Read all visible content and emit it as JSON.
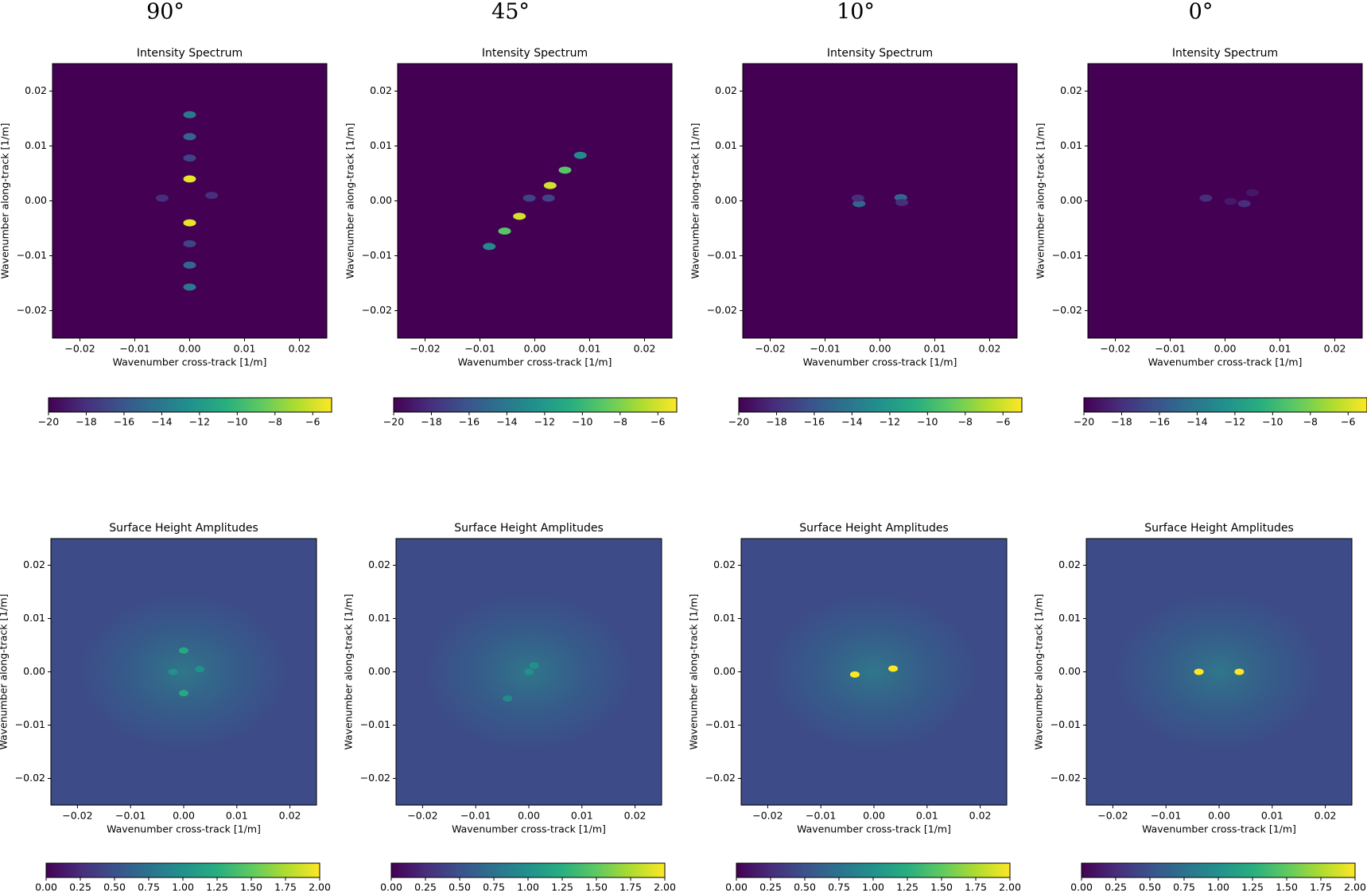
{
  "figure": {
    "column_titles": [
      "90°",
      "45°",
      "10°",
      "0°"
    ]
  },
  "chart_data": [
    {
      "type": "heatmap",
      "title": "Intensity Spectrum",
      "xlabel": "Wavenumber cross-track [1/m]",
      "ylabel": "Wavenumber along-track [1/m]",
      "colormap": "viridis",
      "xlim": [
        -0.025,
        0.025
      ],
      "ylim": [
        -0.025,
        0.025
      ],
      "xticks": [
        {
          "value": -0.02,
          "label": "−0.02"
        },
        {
          "value": -0.01,
          "label": "−0.01"
        },
        {
          "value": 0,
          "label": "0.00"
        },
        {
          "value": 0.01,
          "label": "0.01"
        },
        {
          "value": 0.02,
          "label": "0.02"
        }
      ],
      "yticks": [
        {
          "value": -0.02,
          "label": "−0.02"
        },
        {
          "value": -0.01,
          "label": "−0.01"
        },
        {
          "value": 0,
          "label": "0.00"
        },
        {
          "value": 0.01,
          "label": "0.01"
        },
        {
          "value": 0.02,
          "label": "0.02"
        }
      ],
      "background": -20,
      "spots": {
        "x": [
          0,
          0,
          0,
          0,
          0,
          0,
          0,
          0,
          -0.005,
          0.004
        ],
        "y": [
          0.004,
          -0.004,
          0.0117,
          -0.0117,
          0.0157,
          -0.0157,
          0.0078,
          -0.0078,
          0.0005,
          0.001
        ],
        "values": [
          -5.5,
          -5.5,
          -15,
          -15,
          -14,
          -14,
          -17,
          -17,
          -18,
          -18
        ]
      },
      "colorbar": {
        "lim": [
          -20,
          -5
        ],
        "ticks": [
          {
            "value": -20,
            "label": "−20"
          },
          {
            "value": -18,
            "label": "−18"
          },
          {
            "value": -16,
            "label": "−16"
          },
          {
            "value": -14,
            "label": "−14"
          },
          {
            "value": -12,
            "label": "−12"
          },
          {
            "value": -10,
            "label": "−10"
          },
          {
            "value": -8,
            "label": "−8"
          },
          {
            "value": -6,
            "label": "−6"
          }
        ]
      }
    },
    {
      "type": "heatmap",
      "title": "Intensity Spectrum",
      "xlabel": "Wavenumber cross-track [1/m]",
      "ylabel": "Wavenumber along-track [1/m]",
      "colormap": "viridis",
      "xlim": [
        -0.025,
        0.025
      ],
      "ylim": [
        -0.025,
        0.025
      ],
      "xticks": [
        {
          "value": -0.02,
          "label": "−0.02"
        },
        {
          "value": -0.01,
          "label": "−0.01"
        },
        {
          "value": 0,
          "label": "0.00"
        },
        {
          "value": 0.01,
          "label": "0.01"
        },
        {
          "value": 0.02,
          "label": "0.02"
        }
      ],
      "yticks": [
        {
          "value": -0.02,
          "label": "−0.02"
        },
        {
          "value": -0.01,
          "label": "−0.01"
        },
        {
          "value": 0,
          "label": "0.00"
        },
        {
          "value": 0.01,
          "label": "0.01"
        },
        {
          "value": 0.02,
          "label": "0.02"
        }
      ],
      "background": -20,
      "spots": {
        "x": [
          0.0028,
          -0.0028,
          0.0055,
          -0.0055,
          0.0083,
          -0.0083,
          -0.001,
          0.0025
        ],
        "y": [
          0.0028,
          -0.0028,
          0.0056,
          -0.0055,
          0.0083,
          -0.0083,
          0.0005,
          0.0005
        ],
        "values": [
          -6,
          -6,
          -9,
          -9,
          -13,
          -13,
          -17,
          -17
        ]
      },
      "colorbar": {
        "lim": [
          -20,
          -5
        ],
        "ticks": [
          {
            "value": -20,
            "label": "−20"
          },
          {
            "value": -18,
            "label": "−18"
          },
          {
            "value": -16,
            "label": "−16"
          },
          {
            "value": -14,
            "label": "−14"
          },
          {
            "value": -12,
            "label": "−12"
          },
          {
            "value": -10,
            "label": "−10"
          },
          {
            "value": -8,
            "label": "−8"
          },
          {
            "value": -6,
            "label": "−6"
          }
        ]
      }
    },
    {
      "type": "heatmap",
      "title": "Intensity Spectrum",
      "xlabel": "Wavenumber cross-track [1/m]",
      "ylabel": "Wavenumber along-track [1/m]",
      "colormap": "viridis",
      "xlim": [
        -0.025,
        0.025
      ],
      "ylim": [
        -0.025,
        0.025
      ],
      "xticks": [
        {
          "value": -0.02,
          "label": "−0.02"
        },
        {
          "value": -0.01,
          "label": "−0.01"
        },
        {
          "value": 0,
          "label": "0.00"
        },
        {
          "value": 0.01,
          "label": "0.01"
        },
        {
          "value": 0.02,
          "label": "0.02"
        }
      ],
      "yticks": [
        {
          "value": -0.02,
          "label": "−0.02"
        },
        {
          "value": -0.01,
          "label": "−0.01"
        },
        {
          "value": 0,
          "label": "0.00"
        },
        {
          "value": 0.01,
          "label": "0.01"
        },
        {
          "value": 0.02,
          "label": "0.02"
        }
      ],
      "background": -20,
      "spots": {
        "x": [
          0.0038,
          -0.0038,
          -0.004,
          0.004
        ],
        "y": [
          0.0006,
          -0.0005,
          0.0005,
          -0.0003
        ],
        "values": [
          -15,
          -15,
          -18,
          -18
        ]
      },
      "colorbar": {
        "lim": [
          -20,
          -5
        ],
        "ticks": [
          {
            "value": -20,
            "label": "−20"
          },
          {
            "value": -18,
            "label": "−18"
          },
          {
            "value": -16,
            "label": "−16"
          },
          {
            "value": -14,
            "label": "−14"
          },
          {
            "value": -12,
            "label": "−12"
          },
          {
            "value": -10,
            "label": "−10"
          },
          {
            "value": -8,
            "label": "−8"
          },
          {
            "value": -6,
            "label": "−6"
          }
        ]
      }
    },
    {
      "type": "heatmap",
      "title": "Intensity Spectrum",
      "xlabel": "Wavenumber cross-track [1/m]",
      "ylabel": "Wavenumber along-track [1/m]",
      "colormap": "viridis",
      "xlim": [
        -0.025,
        0.025
      ],
      "ylim": [
        -0.025,
        0.025
      ],
      "xticks": [
        {
          "value": -0.02,
          "label": "−0.02"
        },
        {
          "value": -0.01,
          "label": "−0.01"
        },
        {
          "value": 0,
          "label": "0.00"
        },
        {
          "value": 0.01,
          "label": "0.01"
        },
        {
          "value": 0.02,
          "label": "0.02"
        }
      ],
      "yticks": [
        {
          "value": -0.02,
          "label": "−0.02"
        },
        {
          "value": -0.01,
          "label": "−0.01"
        },
        {
          "value": 0,
          "label": "0.00"
        },
        {
          "value": 0.01,
          "label": "0.01"
        },
        {
          "value": 0.02,
          "label": "0.02"
        }
      ],
      "background": -20,
      "spots": {
        "x": [
          -0.0035,
          0.0035,
          0.001,
          0.005
        ],
        "y": [
          0.0005,
          -0.0005,
          -0.0001,
          0.0015
        ],
        "values": [
          -18,
          -18,
          -19,
          -19
        ]
      },
      "colorbar": {
        "lim": [
          -20,
          -5
        ],
        "ticks": [
          {
            "value": -20,
            "label": "−20"
          },
          {
            "value": -18,
            "label": "−18"
          },
          {
            "value": -16,
            "label": "−16"
          },
          {
            "value": -14,
            "label": "−14"
          },
          {
            "value": -12,
            "label": "−12"
          },
          {
            "value": -10,
            "label": "−10"
          },
          {
            "value": -8,
            "label": "−8"
          },
          {
            "value": -6,
            "label": "−6"
          }
        ]
      }
    },
    {
      "type": "heatmap",
      "title": "Surface Height Amplitudes",
      "xlabel": "Wavenumber cross-track [1/m]",
      "ylabel": "Wavenumber along-track [1/m]",
      "colormap": "viridis",
      "xlim": [
        -0.025,
        0.025
      ],
      "ylim": [
        -0.025,
        0.025
      ],
      "xticks": [
        {
          "value": -0.02,
          "label": "−0.02"
        },
        {
          "value": -0.01,
          "label": "−0.01"
        },
        {
          "value": 0,
          "label": "0.00"
        },
        {
          "value": 0.01,
          "label": "0.01"
        },
        {
          "value": 0.02,
          "label": "0.02"
        }
      ],
      "yticks": [
        {
          "value": -0.02,
          "label": "−0.02"
        },
        {
          "value": -0.01,
          "label": "−0.01"
        },
        {
          "value": 0,
          "label": "0.00"
        },
        {
          "value": 0.01,
          "label": "0.01"
        },
        {
          "value": 0.02,
          "label": "0.02"
        }
      ],
      "background": 0.45,
      "spots": {
        "x": [
          0,
          0,
          -0.002,
          0.003
        ],
        "y": [
          0.004,
          -0.004,
          0,
          0.0005
        ],
        "values": [
          1.2,
          1.2,
          1.0,
          1.0
        ]
      },
      "colorbar": {
        "lim": [
          0,
          2
        ],
        "ticks": [
          {
            "value": 0,
            "label": "0.00"
          },
          {
            "value": 0.25,
            "label": "0.25"
          },
          {
            "value": 0.5,
            "label": "0.50"
          },
          {
            "value": 0.75,
            "label": "0.75"
          },
          {
            "value": 1,
            "label": "1.00"
          },
          {
            "value": 1.25,
            "label": "1.25"
          },
          {
            "value": 1.5,
            "label": "1.50"
          },
          {
            "value": 1.75,
            "label": "1.75"
          },
          {
            "value": 2,
            "label": "2.00"
          }
        ]
      }
    },
    {
      "type": "heatmap",
      "title": "Surface Height Amplitudes",
      "xlabel": "Wavenumber cross-track [1/m]",
      "ylabel": "Wavenumber along-track [1/m]",
      "colormap": "viridis",
      "xlim": [
        -0.025,
        0.025
      ],
      "ylim": [
        -0.025,
        0.025
      ],
      "xticks": [
        {
          "value": -0.02,
          "label": "−0.02"
        },
        {
          "value": -0.01,
          "label": "−0.01"
        },
        {
          "value": 0,
          "label": "0.00"
        },
        {
          "value": 0.01,
          "label": "0.01"
        },
        {
          "value": 0.02,
          "label": "0.02"
        }
      ],
      "yticks": [
        {
          "value": -0.02,
          "label": "−0.02"
        },
        {
          "value": -0.01,
          "label": "−0.01"
        },
        {
          "value": 0,
          "label": "0.00"
        },
        {
          "value": 0.01,
          "label": "0.01"
        },
        {
          "value": 0.02,
          "label": "0.02"
        }
      ],
      "background": 0.45,
      "spots": {
        "x": [
          0,
          0.001,
          -0.004
        ],
        "y": [
          0,
          0.0012,
          -0.005
        ],
        "values": [
          1.0,
          1.0,
          0.95
        ]
      },
      "colorbar": {
        "lim": [
          0,
          2
        ],
        "ticks": [
          {
            "value": 0,
            "label": "0.00"
          },
          {
            "value": 0.25,
            "label": "0.25"
          },
          {
            "value": 0.5,
            "label": "0.50"
          },
          {
            "value": 0.75,
            "label": "0.75"
          },
          {
            "value": 1,
            "label": "1.00"
          },
          {
            "value": 1.25,
            "label": "1.25"
          },
          {
            "value": 1.5,
            "label": "1.50"
          },
          {
            "value": 1.75,
            "label": "1.75"
          },
          {
            "value": 2,
            "label": "2.00"
          }
        ]
      }
    },
    {
      "type": "heatmap",
      "title": "Surface Height Amplitudes",
      "xlabel": "Wavenumber cross-track [1/m]",
      "ylabel": "Wavenumber along-track [1/m]",
      "colormap": "viridis",
      "xlim": [
        -0.025,
        0.025
      ],
      "ylim": [
        -0.025,
        0.025
      ],
      "xticks": [
        {
          "value": -0.02,
          "label": "−0.02"
        },
        {
          "value": -0.01,
          "label": "−0.01"
        },
        {
          "value": 0,
          "label": "0.00"
        },
        {
          "value": 0.01,
          "label": "0.01"
        },
        {
          "value": 0.02,
          "label": "0.02"
        }
      ],
      "yticks": [
        {
          "value": -0.02,
          "label": "−0.02"
        },
        {
          "value": -0.01,
          "label": "−0.01"
        },
        {
          "value": 0,
          "label": "0.00"
        },
        {
          "value": 0.01,
          "label": "0.01"
        },
        {
          "value": 0.02,
          "label": "0.02"
        }
      ],
      "background": 0.45,
      "spots": {
        "x": [
          -0.0036,
          0.0036
        ],
        "y": [
          -0.0005,
          0.0006
        ],
        "values": [
          2.0,
          2.0
        ]
      },
      "colorbar": {
        "lim": [
          0,
          2
        ],
        "ticks": [
          {
            "value": 0,
            "label": "0.00"
          },
          {
            "value": 0.25,
            "label": "0.25"
          },
          {
            "value": 0.5,
            "label": "0.50"
          },
          {
            "value": 0.75,
            "label": "0.75"
          },
          {
            "value": 1,
            "label": "1.00"
          },
          {
            "value": 1.25,
            "label": "1.25"
          },
          {
            "value": 1.5,
            "label": "1.50"
          },
          {
            "value": 1.75,
            "label": "1.75"
          },
          {
            "value": 2,
            "label": "2.00"
          }
        ]
      }
    },
    {
      "type": "heatmap",
      "title": "Surface Height Amplitudes",
      "xlabel": "Wavenumber cross-track [1/m]",
      "ylabel": "Wavenumber along-track [1/m]",
      "colormap": "viridis",
      "xlim": [
        -0.025,
        0.025
      ],
      "ylim": [
        -0.025,
        0.025
      ],
      "xticks": [
        {
          "value": -0.02,
          "label": "−0.02"
        },
        {
          "value": -0.01,
          "label": "−0.01"
        },
        {
          "value": 0,
          "label": "0.00"
        },
        {
          "value": 0.01,
          "label": "0.01"
        },
        {
          "value": 0.02,
          "label": "0.02"
        }
      ],
      "yticks": [
        {
          "value": -0.02,
          "label": "−0.02"
        },
        {
          "value": -0.01,
          "label": "−0.01"
        },
        {
          "value": 0,
          "label": "0.00"
        },
        {
          "value": 0.01,
          "label": "0.01"
        },
        {
          "value": 0.02,
          "label": "0.02"
        }
      ],
      "background": 0.45,
      "spots": {
        "x": [
          -0.0038,
          0.0038
        ],
        "y": [
          0,
          0
        ],
        "values": [
          2.0,
          2.0
        ]
      },
      "colorbar": {
        "lim": [
          0,
          2
        ],
        "ticks": [
          {
            "value": 0,
            "label": "0.00"
          },
          {
            "value": 0.25,
            "label": "0.25"
          },
          {
            "value": 0.5,
            "label": "0.50"
          },
          {
            "value": 0.75,
            "label": "0.75"
          },
          {
            "value": 1,
            "label": "1.00"
          },
          {
            "value": 1.25,
            "label": "1.25"
          },
          {
            "value": 1.5,
            "label": "1.50"
          },
          {
            "value": 1.75,
            "label": "1.75"
          },
          {
            "value": 2,
            "label": "2.00"
          }
        ]
      }
    }
  ]
}
